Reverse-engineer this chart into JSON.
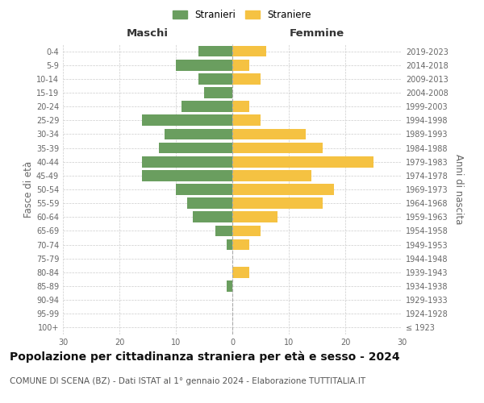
{
  "age_groups": [
    "100+",
    "95-99",
    "90-94",
    "85-89",
    "80-84",
    "75-79",
    "70-74",
    "65-69",
    "60-64",
    "55-59",
    "50-54",
    "45-49",
    "40-44",
    "35-39",
    "30-34",
    "25-29",
    "20-24",
    "15-19",
    "10-14",
    "5-9",
    "0-4"
  ],
  "birth_years": [
    "≤ 1923",
    "1924-1928",
    "1929-1933",
    "1934-1938",
    "1939-1943",
    "1944-1948",
    "1949-1953",
    "1954-1958",
    "1959-1963",
    "1964-1968",
    "1969-1973",
    "1974-1978",
    "1979-1983",
    "1984-1988",
    "1989-1993",
    "1994-1998",
    "1999-2003",
    "2004-2008",
    "2009-2013",
    "2014-2018",
    "2019-2023"
  ],
  "males": [
    0,
    0,
    0,
    1,
    0,
    0,
    1,
    3,
    7,
    8,
    10,
    16,
    16,
    13,
    12,
    16,
    9,
    5,
    6,
    10,
    6
  ],
  "females": [
    0,
    0,
    0,
    0,
    3,
    0,
    3,
    5,
    8,
    16,
    18,
    14,
    25,
    16,
    13,
    5,
    3,
    0,
    5,
    3,
    6
  ],
  "male_color": "#6a9e5f",
  "female_color": "#f5c242",
  "male_label": "Stranieri",
  "female_label": "Straniere",
  "xlabel_left": "Maschi",
  "xlabel_right": "Femmine",
  "ylabel_left": "Fasce di età",
  "ylabel_right": "Anni di nascita",
  "xlim": 30,
  "title": "Popolazione per cittadinanza straniera per età e sesso - 2024",
  "subtitle": "COMUNE DI SCENA (BZ) - Dati ISTAT al 1° gennaio 2024 - Elaborazione TUTTITALIA.IT",
  "background_color": "#ffffff",
  "grid_color": "#cccccc",
  "bar_height": 0.8,
  "tick_color": "#666666",
  "title_fontsize": 10,
  "subtitle_fontsize": 7.5,
  "axis_label_fontsize": 8.5,
  "tick_fontsize": 7,
  "legend_fontsize": 8.5
}
